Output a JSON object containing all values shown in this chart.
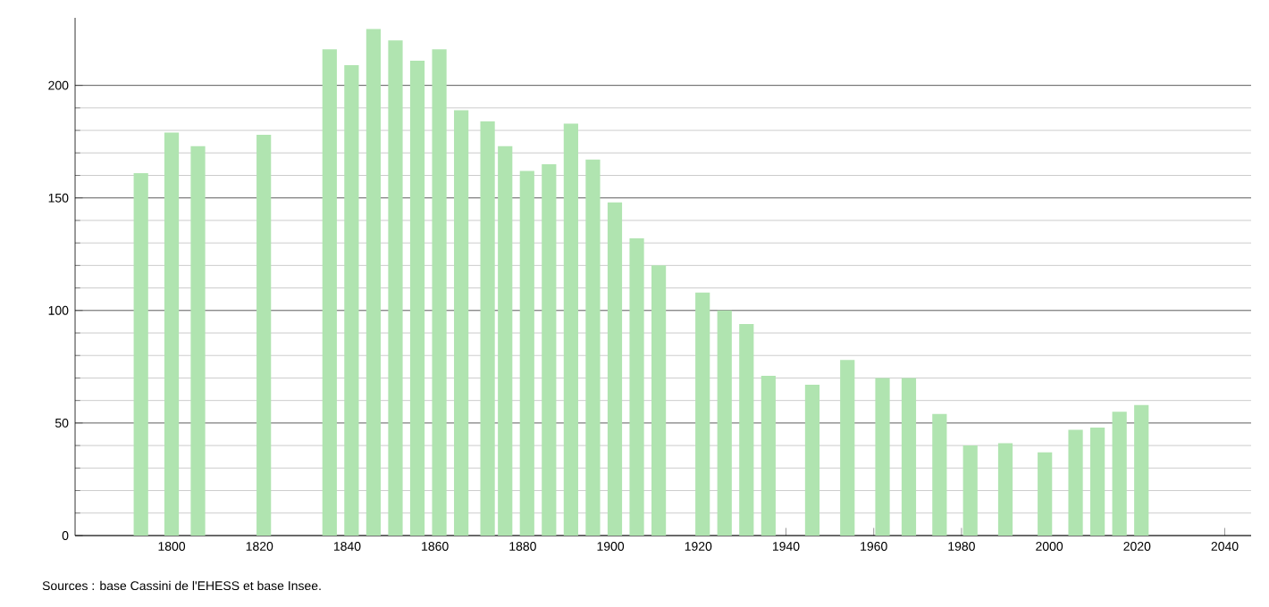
{
  "chart_data": {
    "type": "bar",
    "x": [
      1793,
      1800,
      1806,
      1821,
      1836,
      1841,
      1846,
      1851,
      1856,
      1861,
      1866,
      1872,
      1876,
      1881,
      1886,
      1891,
      1896,
      1901,
      1906,
      1911,
      1921,
      1926,
      1931,
      1936,
      1946,
      1954,
      1962,
      1968,
      1975,
      1982,
      1990,
      1999,
      2006,
      2011,
      2016,
      2021
    ],
    "values": [
      161,
      179,
      173,
      178,
      216,
      209,
      225,
      220,
      211,
      216,
      189,
      184,
      173,
      162,
      165,
      183,
      167,
      148,
      132,
      120,
      108,
      100,
      94,
      71,
      67,
      78,
      70,
      70,
      54,
      40,
      41,
      37,
      47,
      48,
      55,
      58
    ],
    "color": "#b0e4b0",
    "xlim": [
      1778,
      2046
    ],
    "xticks": [
      1800,
      1820,
      1840,
      1860,
      1880,
      1900,
      1920,
      1940,
      1960,
      1980,
      2000,
      2020,
      2040
    ],
    "ylim": [
      0,
      230
    ],
    "yticks": [
      0,
      50,
      100,
      150,
      200
    ],
    "grid": "y",
    "annotations": [
      "Sources : base Cassini de l'EHESS et base Insee."
    ]
  }
}
